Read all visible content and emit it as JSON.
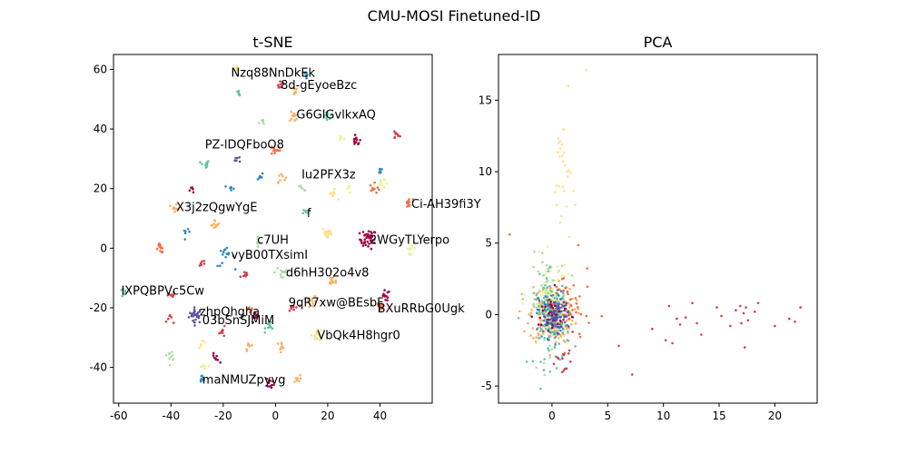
{
  "figure": {
    "suptitle": "CMU-MOSI Finetuned-ID"
  },
  "palette": [
    "#9e0142",
    "#d53e4f",
    "#f46d43",
    "#fdae61",
    "#fee08b",
    "#e6f598",
    "#abdda4",
    "#66c2a5",
    "#3288bd",
    "#5e4fa2"
  ],
  "chart_data": [
    {
      "type": "scatter",
      "title": "t-SNE",
      "xlabel": "",
      "ylabel": "",
      "xlim": [
        -62,
        60
      ],
      "ylim": [
        -52,
        65
      ],
      "xticks": [
        -60,
        -40,
        -20,
        0,
        20,
        40
      ],
      "yticks": [
        -40,
        -20,
        0,
        20,
        40,
        60
      ],
      "grid": false,
      "legend": "none",
      "clusters": [
        {
          "x": -30.5,
          "y": -22.5,
          "c": 9,
          "n": 26,
          "s": 1.3
        },
        {
          "x": 35.5,
          "y": 3,
          "c": 0,
          "n": 40,
          "s": 1.6
        },
        {
          "x": 31,
          "y": 36,
          "c": 0,
          "n": 12,
          "s": 0.8
        },
        {
          "x": 46,
          "y": 38,
          "c": 1,
          "n": 10,
          "s": 0.8
        },
        {
          "x": 20,
          "y": 44,
          "c": 7,
          "n": 10,
          "s": 0.8
        },
        {
          "x": 7,
          "y": 44,
          "c": 3,
          "n": 10,
          "s": 0.8
        },
        {
          "x": 0,
          "y": 33,
          "c": 2,
          "n": 12,
          "s": 0.9
        },
        {
          "x": -27,
          "y": 28,
          "c": 7,
          "n": 10,
          "s": 0.8
        },
        {
          "x": 7,
          "y": 53,
          "c": 3,
          "n": 8,
          "s": 0.8
        },
        {
          "x": 2,
          "y": 55,
          "c": 1,
          "n": 10,
          "s": 0.9
        },
        {
          "x": 12,
          "y": 58,
          "c": 8,
          "n": 8,
          "s": 0.8
        },
        {
          "x": -14,
          "y": 30,
          "c": 9,
          "n": 6,
          "s": 0.7
        },
        {
          "x": -6,
          "y": 24,
          "c": 8,
          "n": 8,
          "s": 0.7
        },
        {
          "x": -17,
          "y": 20,
          "c": 8,
          "n": 6,
          "s": 0.6
        },
        {
          "x": -32,
          "y": 20,
          "c": 0,
          "n": 6,
          "s": 0.6
        },
        {
          "x": 2,
          "y": 24,
          "c": 3,
          "n": 8,
          "s": 0.9
        },
        {
          "x": 22,
          "y": 18,
          "c": 4,
          "n": 10,
          "s": 0.8
        },
        {
          "x": 38,
          "y": 20,
          "c": 2,
          "n": 10,
          "s": 0.9
        },
        {
          "x": 40,
          "y": 26,
          "c": 8,
          "n": 6,
          "s": 0.7
        },
        {
          "x": 40,
          "y": 22,
          "c": 5,
          "n": 10,
          "s": 1.0
        },
        {
          "x": 51,
          "y": 15,
          "c": 2,
          "n": 12,
          "s": 0.8
        },
        {
          "x": -38,
          "y": 14,
          "c": 3,
          "n": 10,
          "s": 0.8
        },
        {
          "x": -23,
          "y": 8,
          "c": 3,
          "n": 10,
          "s": 0.8
        },
        {
          "x": -34,
          "y": 5,
          "c": 8,
          "n": 6,
          "s": 0.6
        },
        {
          "x": 20,
          "y": 5,
          "c": 4,
          "n": 16,
          "s": 1.1
        },
        {
          "x": 52,
          "y": 0,
          "c": 5,
          "n": 12,
          "s": 0.9
        },
        {
          "x": -44,
          "y": 0,
          "c": 2,
          "n": 12,
          "s": 0.8
        },
        {
          "x": -7,
          "y": 2,
          "c": 6,
          "n": 10,
          "s": 0.8
        },
        {
          "x": -19,
          "y": -3,
          "c": 8,
          "n": 16,
          "s": 1.6
        },
        {
          "x": -28,
          "y": -5,
          "c": 1,
          "n": 6,
          "s": 0.7
        },
        {
          "x": -12,
          "y": -9,
          "c": 1,
          "n": 8,
          "s": 0.9
        },
        {
          "x": 3,
          "y": -8,
          "c": 6,
          "n": 16,
          "s": 1.6
        },
        {
          "x": 22,
          "y": -11,
          "c": 3,
          "n": 14,
          "s": 1.0
        },
        {
          "x": 42,
          "y": -16,
          "c": 0,
          "n": 12,
          "s": 0.9
        },
        {
          "x": 40,
          "y": -20,
          "c": 2,
          "n": 12,
          "s": 0.9
        },
        {
          "x": -58,
          "y": -15,
          "c": 7,
          "n": 8,
          "s": 0.7
        },
        {
          "x": -40,
          "y": -16,
          "c": 1,
          "n": 8,
          "s": 0.8
        },
        {
          "x": -40,
          "y": -24,
          "c": 1,
          "n": 6,
          "s": 0.7
        },
        {
          "x": -10,
          "y": -20,
          "c": 2,
          "n": 8,
          "s": 0.9
        },
        {
          "x": -8,
          "y": -24,
          "c": 0,
          "n": 10,
          "s": 0.9
        },
        {
          "x": -2,
          "y": -26,
          "c": 7,
          "n": 12,
          "s": 0.9
        },
        {
          "x": 7,
          "y": -20,
          "c": 1,
          "n": 10,
          "s": 1.0
        },
        {
          "x": 14,
          "y": -18,
          "c": 3,
          "n": 10,
          "s": 1.0
        },
        {
          "x": 16,
          "y": -29,
          "c": 4,
          "n": 18,
          "s": 1.0
        },
        {
          "x": -20,
          "y": -28,
          "c": 1,
          "n": 8,
          "s": 0.8
        },
        {
          "x": -28,
          "y": -32,
          "c": 4,
          "n": 6,
          "s": 0.7
        },
        {
          "x": -10,
          "y": -33,
          "c": 3,
          "n": 8,
          "s": 0.7
        },
        {
          "x": 2,
          "y": -33,
          "c": 3,
          "n": 10,
          "s": 0.8
        },
        {
          "x": -40,
          "y": -36,
          "c": 6,
          "n": 10,
          "s": 0.8
        },
        {
          "x": -23,
          "y": -37,
          "c": 0,
          "n": 8,
          "s": 0.8
        },
        {
          "x": -28,
          "y": -40,
          "c": 5,
          "n": 8,
          "s": 0.8
        },
        {
          "x": -28,
          "y": -44,
          "c": 8,
          "n": 8,
          "s": 0.7
        },
        {
          "x": -2,
          "y": -45,
          "c": 0,
          "n": 10,
          "s": 0.8
        },
        {
          "x": 8,
          "y": -44,
          "c": 3,
          "n": 8,
          "s": 0.7
        },
        {
          "x": -14,
          "y": 52,
          "c": 7,
          "n": 6,
          "s": 0.6
        },
        {
          "x": -15,
          "y": 60,
          "c": 4,
          "n": 8,
          "s": 0.7
        },
        {
          "x": -5,
          "y": 42,
          "c": 6,
          "n": 6,
          "s": 0.6
        },
        {
          "x": 10,
          "y": 20,
          "c": 6,
          "n": 6,
          "s": 0.7
        },
        {
          "x": 12,
          "y": 12,
          "c": 7,
          "n": 6,
          "s": 0.7
        },
        {
          "x": 28,
          "y": 20,
          "c": 5,
          "n": 6,
          "s": 0.7
        },
        {
          "x": 25,
          "y": 37,
          "c": 5,
          "n": 6,
          "s": 0.7
        }
      ],
      "annotations": [
        {
          "text": "Nzq88NnDkEk",
          "x": -17,
          "y": 59
        },
        {
          "text": "8d-gEyoeBzc",
          "x": 2,
          "y": 55
        },
        {
          "text": "G6GlGvlkxAQ",
          "x": 8,
          "y": 45
        },
        {
          "text": "PZ-lDQFboO8",
          "x": -27,
          "y": 35
        },
        {
          "text": "Iu2PFX3z",
          "x": 10,
          "y": 25
        },
        {
          "text": "X3j2zQgwYgE",
          "x": -38,
          "y": 14
        },
        {
          "text": "Ci-AH39fi3Y",
          "x": 52,
          "y": 15
        },
        {
          "text": "f",
          "x": 12,
          "y": 12
        },
        {
          "text": "2WGyTLYerpo",
          "x": 36,
          "y": 3
        },
        {
          "text": "c7UH",
          "x": -7,
          "y": 3
        },
        {
          "text": "vyB00TXsimI",
          "x": -17,
          "y": -2
        },
        {
          "text": "d6hH302o4v8",
          "x": 4,
          "y": -8
        },
        {
          "text": "lXPQBPVc5Cw",
          "x": -59,
          "y": -14
        },
        {
          "text": "9qR7xw@BEsbF",
          "x": 5,
          "y": -18
        },
        {
          "text": "zhpQhgha",
          "x": -29,
          "y": -21
        },
        {
          "text": "BXuRRbG0Ugk",
          "x": 39,
          "y": -20
        },
        {
          "text": "03bSnSJMiM",
          "x": -28,
          "y": -24
        },
        {
          "text": "VbQk4H8hgr0",
          "x": 16,
          "y": -29
        },
        {
          "text": "maNMUZpyvg",
          "x": -28,
          "y": -44
        }
      ]
    },
    {
      "type": "scatter",
      "title": "PCA",
      "xlabel": "",
      "ylabel": "",
      "xlim": [
        -4.8,
        23.8
      ],
      "ylim": [
        -6.2,
        18.2
      ],
      "xticks": [
        0,
        5,
        10,
        15,
        20
      ],
      "yticks": [
        -5,
        0,
        5,
        10,
        15
      ],
      "grid": false,
      "legend": "none",
      "clusters": [
        {
          "x": 0,
          "y": 0,
          "c": 3,
          "n": 200,
          "s": 1.0,
          "sy": 1.0
        },
        {
          "x": 0,
          "y": 0,
          "c": 8,
          "n": 150,
          "s": 0.6,
          "sy": 0.8
        },
        {
          "x": -0.3,
          "y": 0.8,
          "c": 6,
          "n": 90,
          "s": 0.8,
          "sy": 1.6
        },
        {
          "x": 0,
          "y": -0.5,
          "c": 7,
          "n": 80,
          "s": 0.8,
          "sy": 1.6
        },
        {
          "x": 0.5,
          "y": 0,
          "c": 9,
          "n": 60,
          "s": 0.5,
          "sy": 0.6
        },
        {
          "x": 1.0,
          "y": 9.5,
          "c": 4,
          "n": 30,
          "s": 0.4,
          "sy": 2.5
        },
        {
          "x": 0,
          "y": 1.5,
          "c": 5,
          "n": 50,
          "s": 1.0,
          "sy": 1.2
        },
        {
          "x": 1.2,
          "y": -3.5,
          "c": 1,
          "n": 14,
          "s": 0.4,
          "sy": 1.0
        },
        {
          "x": 1.5,
          "y": 0.5,
          "c": 2,
          "n": 40,
          "s": 1.0,
          "sy": 1.5
        },
        {
          "x": 0,
          "y": 0,
          "c": 0,
          "n": 30,
          "s": 0.8,
          "sy": 0.8
        }
      ],
      "points": [
        {
          "x": 3.1,
          "y": 17.1,
          "c": 4
        },
        {
          "x": -3.8,
          "y": 5.6,
          "c": 2
        },
        {
          "x": 6.0,
          "y": -2.2,
          "c": 1
        },
        {
          "x": 7.2,
          "y": -4.2,
          "c": 1
        },
        {
          "x": 9.0,
          "y": -1.0,
          "c": 1
        },
        {
          "x": 10.2,
          "y": -1.8,
          "c": 1
        },
        {
          "x": 10.5,
          "y": 0.6,
          "c": 1
        },
        {
          "x": 10.8,
          "y": -2.0,
          "c": 1
        },
        {
          "x": 11.2,
          "y": -0.3,
          "c": 1
        },
        {
          "x": 11.5,
          "y": -0.7,
          "c": 1
        },
        {
          "x": 12.0,
          "y": -0.2,
          "c": 1
        },
        {
          "x": 12.6,
          "y": 0.8,
          "c": 1
        },
        {
          "x": 13.0,
          "y": -0.6,
          "c": 1
        },
        {
          "x": 13.4,
          "y": -1.4,
          "c": 1
        },
        {
          "x": 14.8,
          "y": 0.5,
          "c": 1
        },
        {
          "x": 15.2,
          "y": -0.1,
          "c": 1
        },
        {
          "x": 16.0,
          "y": -0.8,
          "c": 1
        },
        {
          "x": 16.5,
          "y": 0.3,
          "c": 1
        },
        {
          "x": 16.9,
          "y": 0.6,
          "c": 1
        },
        {
          "x": 17.0,
          "y": -0.6,
          "c": 1
        },
        {
          "x": 17.2,
          "y": 0.1,
          "c": 1
        },
        {
          "x": 17.4,
          "y": 0.5,
          "c": 1
        },
        {
          "x": 17.6,
          "y": -0.4,
          "c": 1
        },
        {
          "x": 18.2,
          "y": 0.2,
          "c": 1
        },
        {
          "x": 18.5,
          "y": 0.8,
          "c": 1
        },
        {
          "x": 17.3,
          "y": -2.3,
          "c": 1
        },
        {
          "x": 20.0,
          "y": -0.8,
          "c": 1
        },
        {
          "x": 21.3,
          "y": -0.3,
          "c": 1
        },
        {
          "x": 21.8,
          "y": -0.5,
          "c": 1
        },
        {
          "x": 22.3,
          "y": 0.5,
          "c": 1
        }
      ]
    }
  ]
}
